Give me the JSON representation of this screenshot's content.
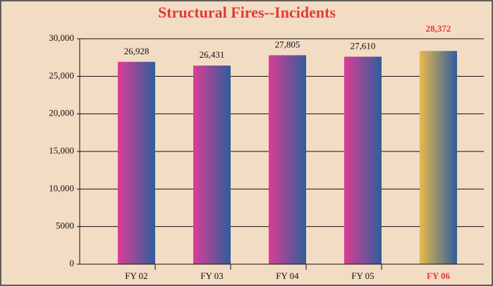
{
  "chart_data": {
    "type": "bar",
    "title": "Structural Fires--Incidents",
    "categories": [
      "FY 02",
      "FY 03",
      "FY 04",
      "FY 05",
      "FY 06"
    ],
    "values": [
      26928,
      26431,
      27805,
      27610,
      28372
    ],
    "value_labels": [
      "26,928",
      "26,431",
      "27,805",
      "27,610",
      "28,372"
    ],
    "colors": [
      "#dc3d95",
      "#dc3d95",
      "#dc3d95",
      "#dc3d95",
      "#e8b94c"
    ],
    "gradient_end": "#2f5d9c",
    "label_colors": [
      "#111111",
      "#111111",
      "#111111",
      "#111111",
      "#e23a3a"
    ],
    "ylim": [
      0,
      30000
    ],
    "yticks": [
      0,
      5000,
      {
        "value": 10000,
        "label": "10,000"
      },
      {
        "value": 15000,
        "label": "15,000"
      },
      {
        "value": 20000,
        "label": "20,000"
      },
      {
        "value": 25000,
        "label": "25,000"
      },
      {
        "value": 30000,
        "label": "30,000"
      }
    ],
    "grid": true
  }
}
